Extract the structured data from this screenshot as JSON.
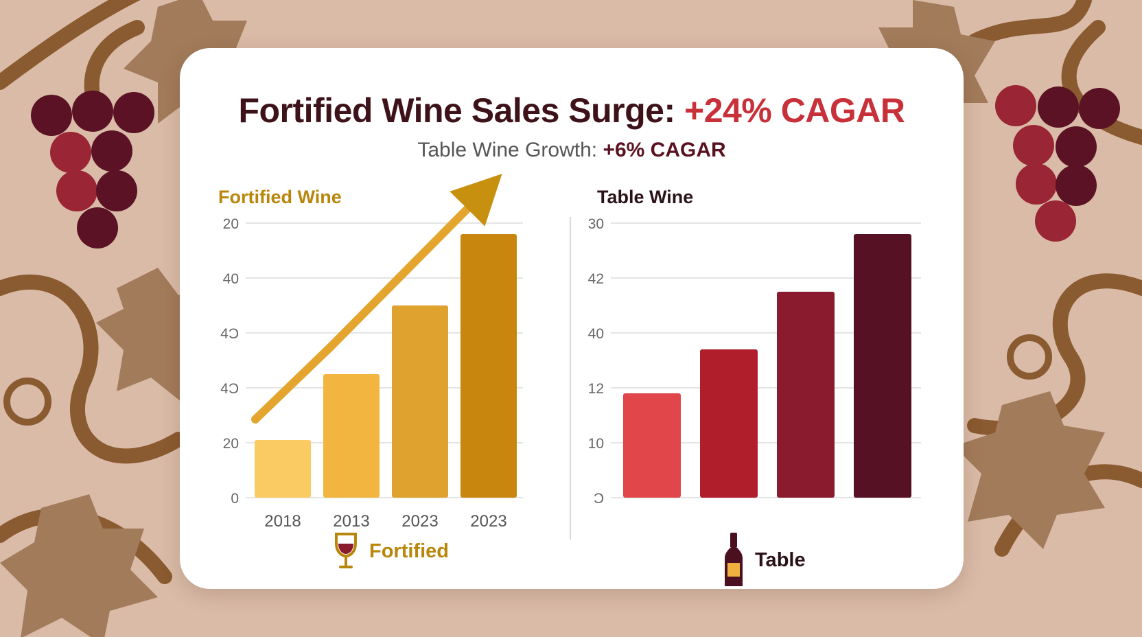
{
  "header": {
    "title_main": "Fortified Wine Sales Surge: ",
    "title_accent": "+24% CAGAR",
    "subtitle_main": "Table Wine Growth: ",
    "subtitle_accent": "+6% CAGAR"
  },
  "legend": {
    "fortified_label": "Fortified",
    "fortified_icon": "wine-glass-icon",
    "table_label": "Table",
    "table_icon": "wine-bottle-icon"
  },
  "colors": {
    "title": "#3d1218",
    "accent_red": "#c8303a",
    "fortified_gold": "#b8860b",
    "background": "#d9bba7",
    "vine_brown": "#8a5a30"
  },
  "chart_data": [
    {
      "type": "bar",
      "title": "Fortified Wine",
      "categories": [
        "2018",
        "2013",
        "2023",
        "2023"
      ],
      "values": [
        21,
        45,
        70,
        96
      ],
      "ytick_labels": [
        "20",
        "40",
        "4Ͻ",
        "4Ͻ",
        "20",
        "0"
      ],
      "ylim": [
        0,
        100
      ],
      "grid": true,
      "colors": [
        "#fbcb63",
        "#f1b540",
        "#e0a22e",
        "#c8860f"
      ],
      "trend_arrow": true
    },
    {
      "type": "bar",
      "title": "Table Wine",
      "categories": [
        "",
        "",
        "",
        ""
      ],
      "values": [
        38,
        54,
        75,
        96
      ],
      "ytick_labels": [
        "30",
        "42",
        "40",
        "12",
        "10",
        "Ͻ"
      ],
      "ylim": [
        0,
        100
      ],
      "grid": true,
      "colors": [
        "#e0464a",
        "#b01e2c",
        "#8a1a2e",
        "#561224"
      ]
    }
  ]
}
